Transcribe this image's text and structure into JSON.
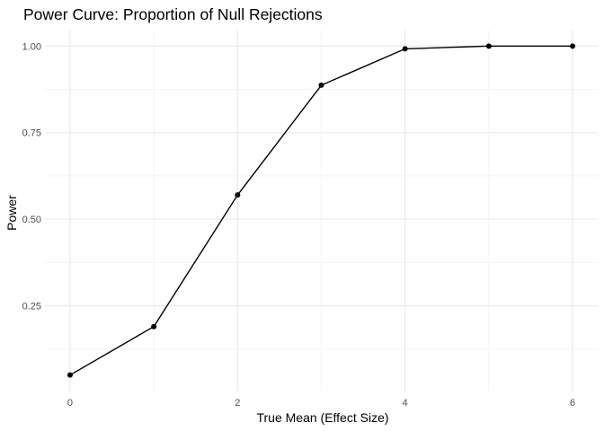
{
  "chart_data": {
    "type": "line",
    "title": "Power Curve: Proportion of Null Rejections",
    "xlabel": "True Mean (Effect Size)",
    "ylabel": "Power",
    "x": [
      0,
      1,
      2,
      3,
      4,
      5,
      6
    ],
    "series": [
      {
        "values": [
          0.05,
          0.19,
          0.57,
          0.887,
          0.992,
          1.0,
          1.0
        ]
      }
    ],
    "xlim": [
      -0.3,
      6.3
    ],
    "ylim": [
      0.0025,
      1.0475
    ],
    "x_major_ticks": [
      0,
      2,
      4,
      6
    ],
    "x_tick_labels": [
      "0",
      "2",
      "4",
      "6"
    ],
    "x_minor_gridlines": [
      1,
      3,
      5
    ],
    "y_major_ticks": [
      0.25,
      0.5,
      0.75,
      1.0
    ],
    "y_tick_labels": [
      "0.25",
      "0.50",
      "0.75",
      "1.00"
    ],
    "y_minor_gridlines": [
      0.125,
      0.375,
      0.625,
      0.875
    ],
    "grid": true,
    "legend": "none",
    "colors": {
      "line": "#000000",
      "point": "#000000",
      "major_grid": "#ebebeb",
      "minor_grid": "#f5f5f5",
      "background": "#ffffff"
    }
  }
}
